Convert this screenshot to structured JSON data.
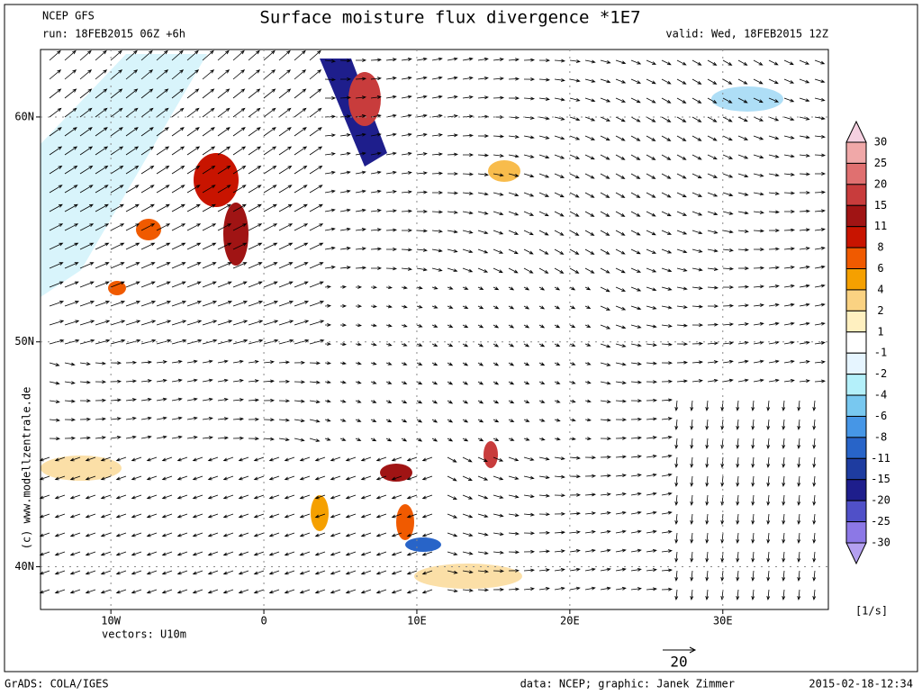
{
  "header": {
    "model": "NCEP GFS",
    "run": "run: 18FEB2015 06Z +6h",
    "title": "Surface moisture flux divergence *1E7",
    "valid": "valid: Wed, 18FEB2015 12Z"
  },
  "map": {
    "xlim": [
      -14.6,
      36.9
    ],
    "ylim": [
      38.1,
      63
    ],
    "xticks": [
      {
        "value": -10,
        "label": "10W"
      },
      0,
      {
        "value": 10,
        "label": "10E"
      },
      {
        "value": 20,
        "label": "20E"
      },
      {
        "value": 30,
        "label": "30E"
      }
    ],
    "yticks": [
      {
        "value": 60,
        "label": "60N"
      },
      {
        "value": 50,
        "label": "50N"
      },
      {
        "value": 40,
        "label": "40N"
      }
    ],
    "vectors": "vectors: U10m",
    "reference_vector": 20
  },
  "colorbar": {
    "levels": [
      30,
      25,
      20,
      15,
      11,
      8,
      6,
      4,
      2,
      1,
      -1,
      -2,
      -4,
      -6,
      -8,
      -11,
      -15,
      -20,
      -25,
      -30
    ],
    "colors": [
      "#f5d0e0",
      "#f0a8a8",
      "#e07070",
      "#c83c3c",
      "#a01414",
      "#c81400",
      "#f05a00",
      "#f5a000",
      "#fad282",
      "#fff0c0",
      "#ffffff",
      "#e6f5ff",
      "#b4f0fa",
      "#78c8f0",
      "#4696e6",
      "#2864c8",
      "#1e3ca0",
      "#1e1e8c",
      "#5050c8",
      "#8c78e6",
      "#b4a0f0"
    ],
    "unit": "[1/s]"
  },
  "footer": {
    "copyright": "(c) www.modellzentrale.de",
    "grads": "GrADS: COLA/IGES",
    "credits": "data: NCEP; graphic: Janek Zimmer",
    "timestamp": "2015-02-18-12:34"
  }
}
